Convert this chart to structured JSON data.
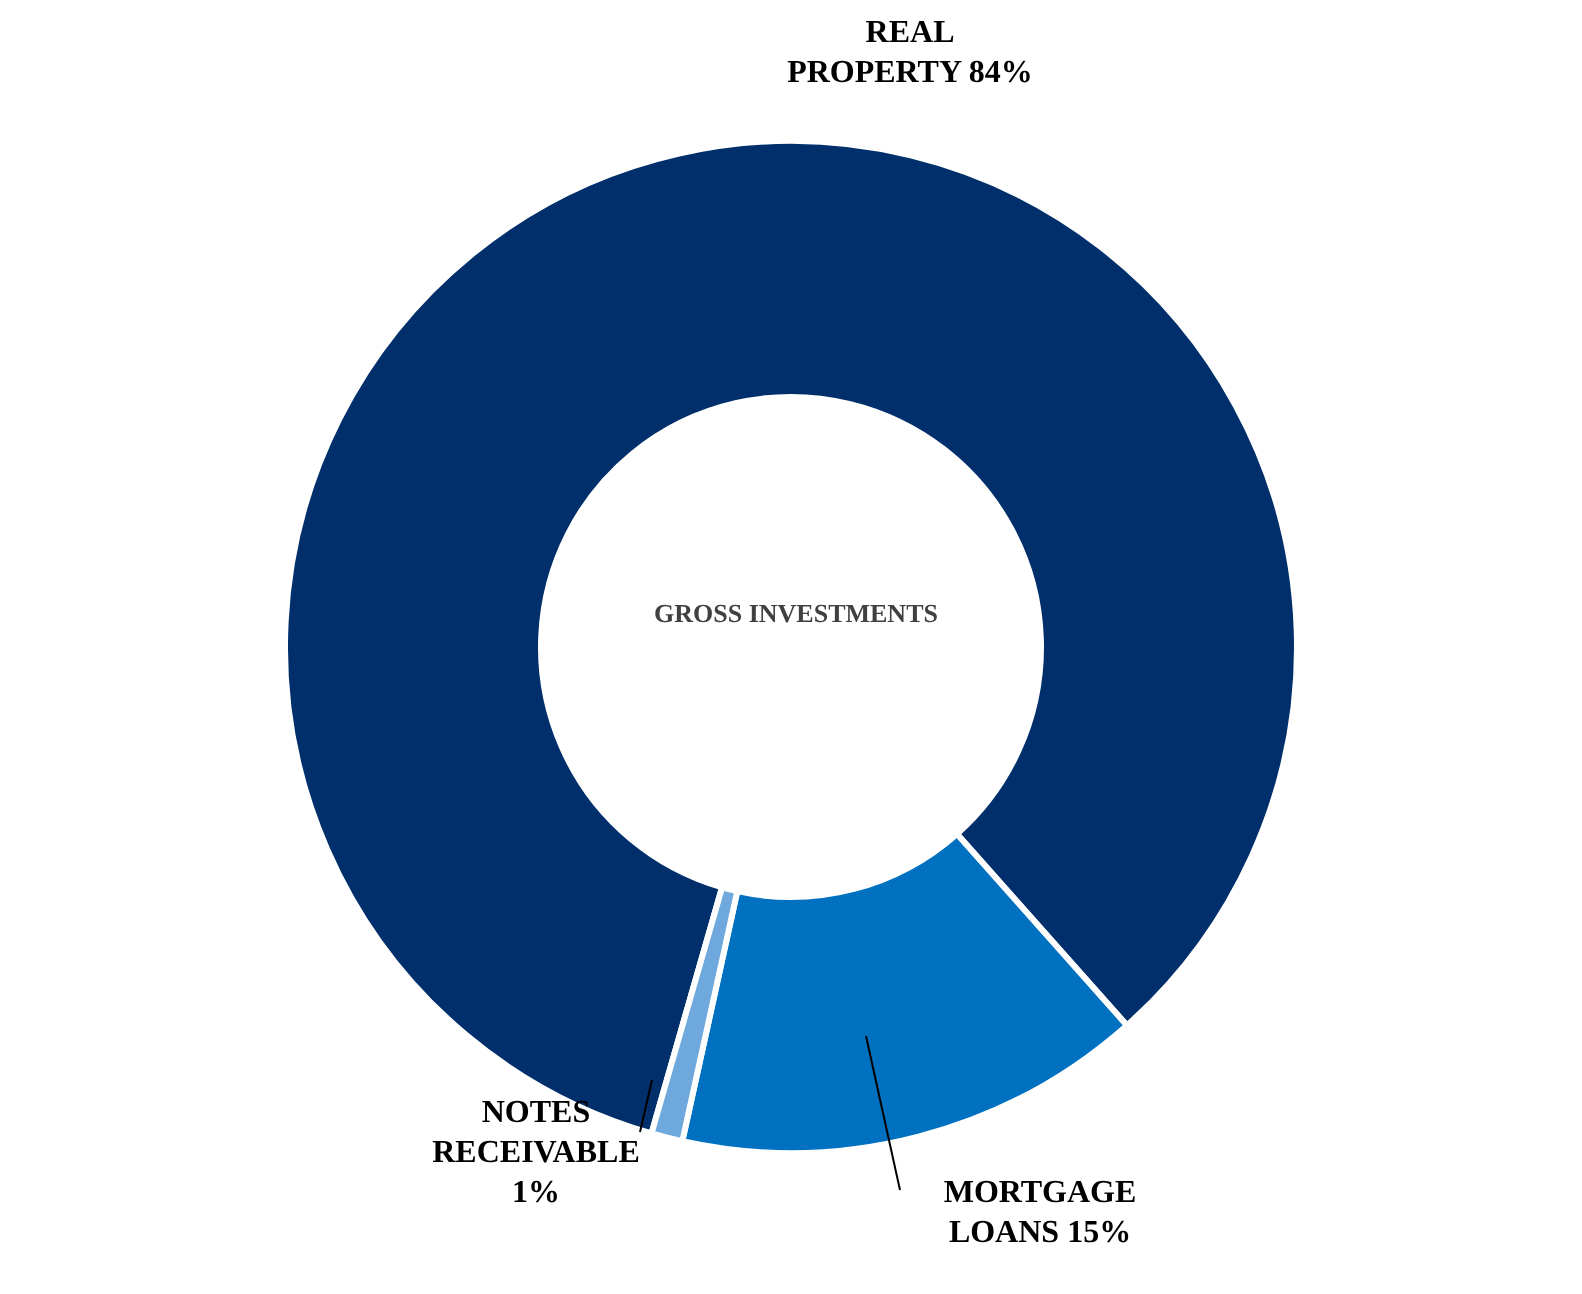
{
  "chart_data": {
    "type": "donut",
    "title": "GROSS INVESTMENTS",
    "categories": [
      "REAL PROPERTY",
      "MORTGAGE LOANS",
      "NOTES RECEIVABLE"
    ],
    "values": [
      84,
      15,
      1
    ],
    "colors": [
      "#002f6c",
      "#0070c0",
      "#6fa8dc"
    ],
    "value_labels": [
      "84%",
      "15%",
      "1%"
    ]
  }
}
